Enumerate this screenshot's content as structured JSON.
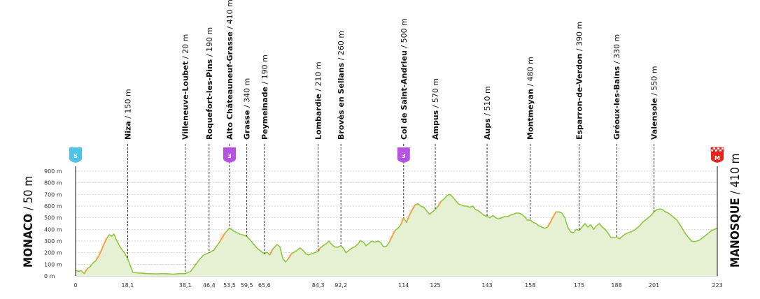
{
  "chart_data": {
    "type": "area",
    "start": {
      "name": "MONACO",
      "elev": "50 m",
      "badge": "S",
      "color": "#4fc3e8"
    },
    "finish": {
      "name": "MANOSQUE",
      "elev": "410 m",
      "badge": "M",
      "color": "#e8251d"
    },
    "xlim": [
      0,
      223
    ],
    "ylim": [
      0,
      900
    ],
    "yticks": [
      "0 m",
      "100 m",
      "200 m",
      "300 m",
      "400 m",
      "500 m",
      "600 m",
      "700 m",
      "800 m",
      "900 m"
    ],
    "ytick_values": [
      0,
      100,
      200,
      300,
      400,
      500,
      600,
      700,
      800,
      900
    ],
    "xtick_values": [
      0,
      18.1,
      38.1,
      46.4,
      53.5,
      59.5,
      65.6,
      84.3,
      92.2,
      114,
      125,
      143,
      158,
      175,
      188,
      201,
      223
    ],
    "xtick_labels": [
      "0",
      "18,1",
      "38,1",
      "46,4",
      "53,5",
      "59,5",
      "65,6",
      "84,3",
      "92,2",
      "114",
      "125",
      "143",
      "158",
      "175",
      "188",
      "201",
      "223"
    ],
    "waypoints": [
      {
        "km": 18.1,
        "name": "Niza",
        "elev": " / 150 m"
      },
      {
        "km": 38.1,
        "name": "Villeneuve-Loubet",
        "elev": " / 20 m"
      },
      {
        "km": 46.4,
        "name": "Roquefort-les-Pins",
        "elev": " / 190 m"
      },
      {
        "km": 53.5,
        "name": "Alto Châteauneuf-Grasse",
        "elev": " / 410 m",
        "climb": "3"
      },
      {
        "km": 59.5,
        "name": "Grasse",
        "elev": " / 340 m"
      },
      {
        "km": 65.6,
        "name": "Peymeinade",
        "elev": " / 190 m"
      },
      {
        "km": 84.3,
        "name": "Lombardie",
        "elev": " / 210 m"
      },
      {
        "km": 92.2,
        "name": "Brovès en Sellans",
        "elev": " / 260 m"
      },
      {
        "km": 114,
        "name": "Col de Saint-Andrieu",
        "elev": " / 500 m",
        "climb": "3"
      },
      {
        "km": 125,
        "name": "Ampus",
        "elev": " / 570 m"
      },
      {
        "km": 143,
        "name": "Aups",
        "elev": " / 510 m"
      },
      {
        "km": 158,
        "name": "Montmeyan",
        "elev": " / 480 m"
      },
      {
        "km": 175,
        "name": "Esparron-de-Verdon",
        "elev": " / 390 m"
      },
      {
        "km": 188,
        "name": "Gréoux-les-Bains",
        "elev": " / 330 m"
      },
      {
        "km": 201,
        "name": "Valensole",
        "elev": " / 550 m"
      }
    ],
    "profile": [
      [
        0,
        50
      ],
      [
        1,
        40
      ],
      [
        2,
        45
      ],
      [
        3,
        20
      ],
      [
        4,
        60
      ],
      [
        5,
        80
      ],
      [
        6,
        110
      ],
      [
        7,
        130
      ],
      [
        8,
        170
      ],
      [
        9,
        220
      ],
      [
        10,
        280
      ],
      [
        11,
        330
      ],
      [
        11.8,
        355
      ],
      [
        12.5,
        340
      ],
      [
        13.3,
        360
      ],
      [
        14,
        320
      ],
      [
        15,
        270
      ],
      [
        16,
        230
      ],
      [
        17,
        200
      ],
      [
        18.1,
        150
      ],
      [
        19,
        90
      ],
      [
        20,
        30
      ],
      [
        22,
        25
      ],
      [
        25,
        20
      ],
      [
        28,
        18
      ],
      [
        31,
        20
      ],
      [
        34,
        15
      ],
      [
        36,
        20
      ],
      [
        38.1,
        20
      ],
      [
        40,
        40
      ],
      [
        41.5,
        90
      ],
      [
        43,
        140
      ],
      [
        44.5,
        180
      ],
      [
        46.4,
        200
      ],
      [
        48,
        220
      ],
      [
        50,
        290
      ],
      [
        52,
        370
      ],
      [
        53.5,
        410
      ],
      [
        55,
        385
      ],
      [
        57,
        360
      ],
      [
        58.5,
        350
      ],
      [
        59.5,
        340
      ],
      [
        61,
        300
      ],
      [
        63,
        240
      ],
      [
        64.5,
        210
      ],
      [
        65.6,
        190
      ],
      [
        66.5,
        205
      ],
      [
        67.5,
        180
      ],
      [
        68.5,
        230
      ],
      [
        70,
        270
      ],
      [
        71,
        250
      ],
      [
        72,
        150
      ],
      [
        73,
        120
      ],
      [
        74,
        150
      ],
      [
        75,
        190
      ],
      [
        77,
        220
      ],
      [
        78,
        240
      ],
      [
        79,
        220
      ],
      [
        80,
        190
      ],
      [
        81,
        180
      ],
      [
        82,
        190
      ],
      [
        83,
        200
      ],
      [
        84.3,
        210
      ],
      [
        85,
        240
      ],
      [
        86,
        260
      ],
      [
        87,
        275
      ],
      [
        88,
        300
      ],
      [
        89,
        270
      ],
      [
        90,
        250
      ],
      [
        91,
        245
      ],
      [
        92.2,
        260
      ],
      [
        93,
        240
      ],
      [
        94,
        200
      ],
      [
        95,
        220
      ],
      [
        96,
        240
      ],
      [
        97,
        250
      ],
      [
        98,
        270
      ],
      [
        99,
        305
      ],
      [
        100,
        290
      ],
      [
        101,
        260
      ],
      [
        102,
        280
      ],
      [
        103,
        300
      ],
      [
        104,
        290
      ],
      [
        105,
        300
      ],
      [
        106,
        290
      ],
      [
        107,
        250
      ],
      [
        108,
        255
      ],
      [
        109,
        290
      ],
      [
        110,
        340
      ],
      [
        111,
        390
      ],
      [
        112,
        410
      ],
      [
        113,
        440
      ],
      [
        114,
        500
      ],
      [
        115,
        460
      ],
      [
        116,
        520
      ],
      [
        117,
        570
      ],
      [
        118,
        610
      ],
      [
        119,
        620
      ],
      [
        120,
        600
      ],
      [
        121,
        590
      ],
      [
        122,
        560
      ],
      [
        123,
        530
      ],
      [
        124,
        550
      ],
      [
        125,
        570
      ],
      [
        126,
        600
      ],
      [
        127,
        640
      ],
      [
        128,
        660
      ],
      [
        129,
        690
      ],
      [
        130,
        700
      ],
      [
        131,
        680
      ],
      [
        132,
        650
      ],
      [
        133,
        620
      ],
      [
        134,
        610
      ],
      [
        135,
        600
      ],
      [
        136,
        600
      ],
      [
        137,
        590
      ],
      [
        138,
        600
      ],
      [
        139,
        570
      ],
      [
        140,
        560
      ],
      [
        141,
        540
      ],
      [
        142,
        520
      ],
      [
        143,
        510
      ],
      [
        144,
        500
      ],
      [
        145,
        520
      ],
      [
        146,
        500
      ],
      [
        147,
        490
      ],
      [
        148,
        500
      ],
      [
        149,
        510
      ],
      [
        150,
        510
      ],
      [
        151,
        520
      ],
      [
        152,
        530
      ],
      [
        153,
        540
      ],
      [
        154,
        540
      ],
      [
        155,
        530
      ],
      [
        156,
        510
      ],
      [
        157,
        480
      ],
      [
        158,
        480
      ],
      [
        159,
        460
      ],
      [
        160,
        450
      ],
      [
        161,
        430
      ],
      [
        162,
        420
      ],
      [
        163,
        410
      ],
      [
        164,
        420
      ],
      [
        165,
        460
      ],
      [
        166,
        510
      ],
      [
        167,
        550
      ],
      [
        168,
        550
      ],
      [
        169,
        540
      ],
      [
        170,
        500
      ],
      [
        171,
        420
      ],
      [
        172,
        380
      ],
      [
        173,
        370
      ],
      [
        174,
        400
      ],
      [
        175,
        390
      ],
      [
        176,
        420
      ],
      [
        177,
        450
      ],
      [
        178,
        420
      ],
      [
        179,
        440
      ],
      [
        180,
        400
      ],
      [
        181,
        430
      ],
      [
        182,
        450
      ],
      [
        183,
        420
      ],
      [
        184,
        400
      ],
      [
        185,
        370
      ],
      [
        186,
        330
      ],
      [
        187,
        330
      ],
      [
        188,
        330
      ],
      [
        189,
        320
      ],
      [
        190,
        340
      ],
      [
        191,
        360
      ],
      [
        192,
        370
      ],
      [
        193,
        380
      ],
      [
        194,
        390
      ],
      [
        195,
        410
      ],
      [
        196,
        430
      ],
      [
        197,
        460
      ],
      [
        198,
        480
      ],
      [
        199,
        500
      ],
      [
        200,
        520
      ],
      [
        201,
        550
      ],
      [
        202,
        570
      ],
      [
        203,
        575
      ],
      [
        204,
        570
      ],
      [
        205,
        550
      ],
      [
        206,
        540
      ],
      [
        207,
        520
      ],
      [
        208,
        500
      ],
      [
        209,
        480
      ],
      [
        210,
        440
      ],
      [
        211,
        400
      ],
      [
        212,
        360
      ],
      [
        213,
        330
      ],
      [
        214,
        300
      ],
      [
        215,
        295
      ],
      [
        216,
        300
      ],
      [
        217,
        310
      ],
      [
        218,
        330
      ],
      [
        219,
        350
      ],
      [
        220,
        370
      ],
      [
        221,
        390
      ],
      [
        222,
        400
      ],
      [
        223,
        410
      ]
    ]
  }
}
